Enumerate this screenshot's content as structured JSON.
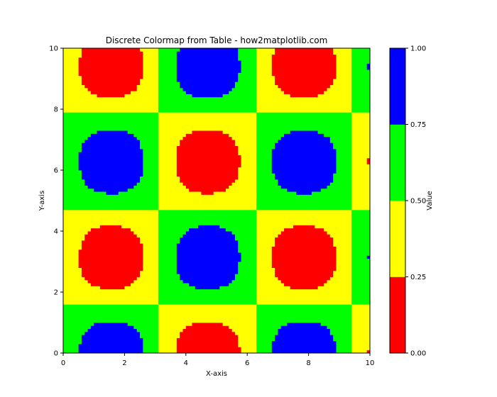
{
  "chart_data": {
    "type": "heatmap",
    "title": "Discrete Colormap from Table - how2matplotlib.com",
    "xlabel": "X-axis",
    "ylabel": "Y-axis",
    "xlim": [
      0,
      10
    ],
    "ylim": [
      0,
      10
    ],
    "x_ticks": [
      "0",
      "2",
      "4",
      "6",
      "8",
      "10"
    ],
    "y_ticks": [
      "0",
      "2",
      "4",
      "6",
      "8",
      "10"
    ],
    "grid": false,
    "field": {
      "description": "z = sin(x) * cos(y) style periodic pattern",
      "blobs": [
        {
          "x": 1.571,
          "y": 0.0
        },
        {
          "x": 7.854,
          "y": 0.0
        },
        {
          "x": 4.712,
          "y": 3.142
        },
        {
          "x": 1.571,
          "y": 6.283
        },
        {
          "x": 7.854,
          "y": 6.283
        },
        {
          "x": 4.712,
          "y": 9.425
        },
        {
          "x": 11.0,
          "y": 3.142
        },
        {
          "x": 11.0,
          "y": 9.425
        }
      ],
      "grid_resolution": 100
    },
    "colorbar": {
      "label": "Value",
      "ticks": [
        "0.00",
        "0.25",
        "0.50",
        "0.75",
        "1.00"
      ],
      "levels": [
        0.0,
        0.25,
        0.5,
        0.75,
        1.0
      ],
      "colors": [
        "#ff0000",
        "#ffff00",
        "#00ff00",
        "#0000ff"
      ]
    }
  }
}
